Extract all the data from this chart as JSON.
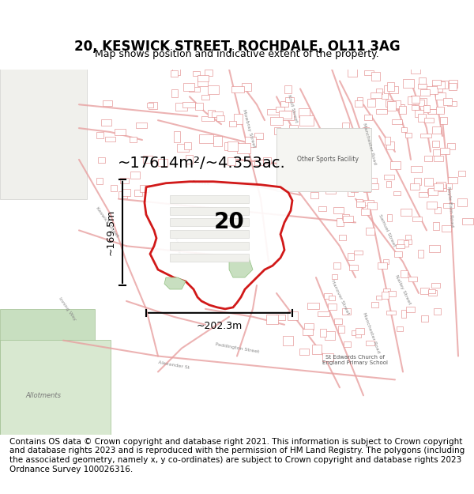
{
  "title": "20, KESWICK STREET, ROCHDALE, OL11 3AG",
  "subtitle": "Map shows position and indicative extent of the property.",
  "area_label": "~17614m²/~4.353ac.",
  "property_number": "20",
  "width_label": "~202.3m",
  "height_label": "~169.5m",
  "footer_text": "Contains OS data © Crown copyright and database right 2021. This information is subject to Crown copyright and database rights 2023 and is reproduced with the permission of HM Land Registry. The polygons (including the associated geometry, namely x, y co-ordinates) are subject to Crown copyright and database rights 2023 Ordnance Survey 100026316.",
  "map_bg": "#f5f5f0",
  "property_fill": "#ffffff",
  "property_edge": "#cc0000",
  "road_color": "#f0c0c0",
  "building_color": "#f0c0c0",
  "green_color": "#c8dfc0",
  "title_fontsize": 12,
  "subtitle_fontsize": 9,
  "footer_fontsize": 7.5,
  "label_fontsize": 14
}
